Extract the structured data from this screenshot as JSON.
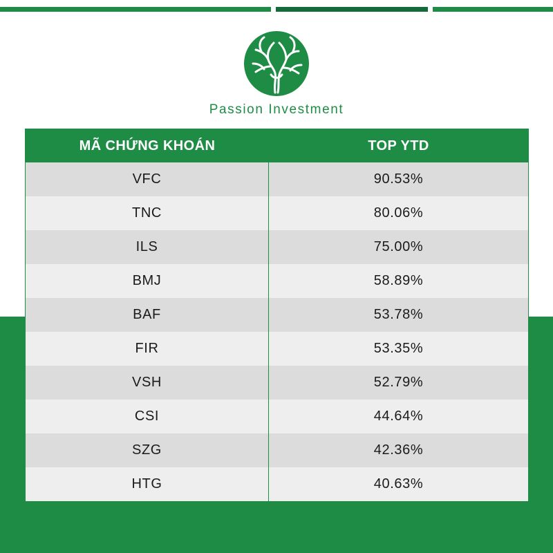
{
  "brand": {
    "name": "Passion Investment",
    "logo_icon": "tree-circle-icon",
    "color": "#1e8c45"
  },
  "table": {
    "headers": [
      "MÃ CHỨNG KHOÁN",
      "TOP YTD"
    ],
    "rows": [
      {
        "ticker": "VFC",
        "ytd": "90.53%"
      },
      {
        "ticker": "TNC",
        "ytd": "80.06%"
      },
      {
        "ticker": "ILS",
        "ytd": "75.00%"
      },
      {
        "ticker": "BMJ",
        "ytd": "58.89%"
      },
      {
        "ticker": "BAF",
        "ytd": "53.78%"
      },
      {
        "ticker": "FIR",
        "ytd": "53.35%"
      },
      {
        "ticker": "VSH",
        "ytd": "52.79%"
      },
      {
        "ticker": "CSI",
        "ytd": "44.64%"
      },
      {
        "ticker": "SZG",
        "ytd": "42.36%"
      },
      {
        "ticker": "HTG",
        "ytd": "40.63%"
      }
    ]
  }
}
